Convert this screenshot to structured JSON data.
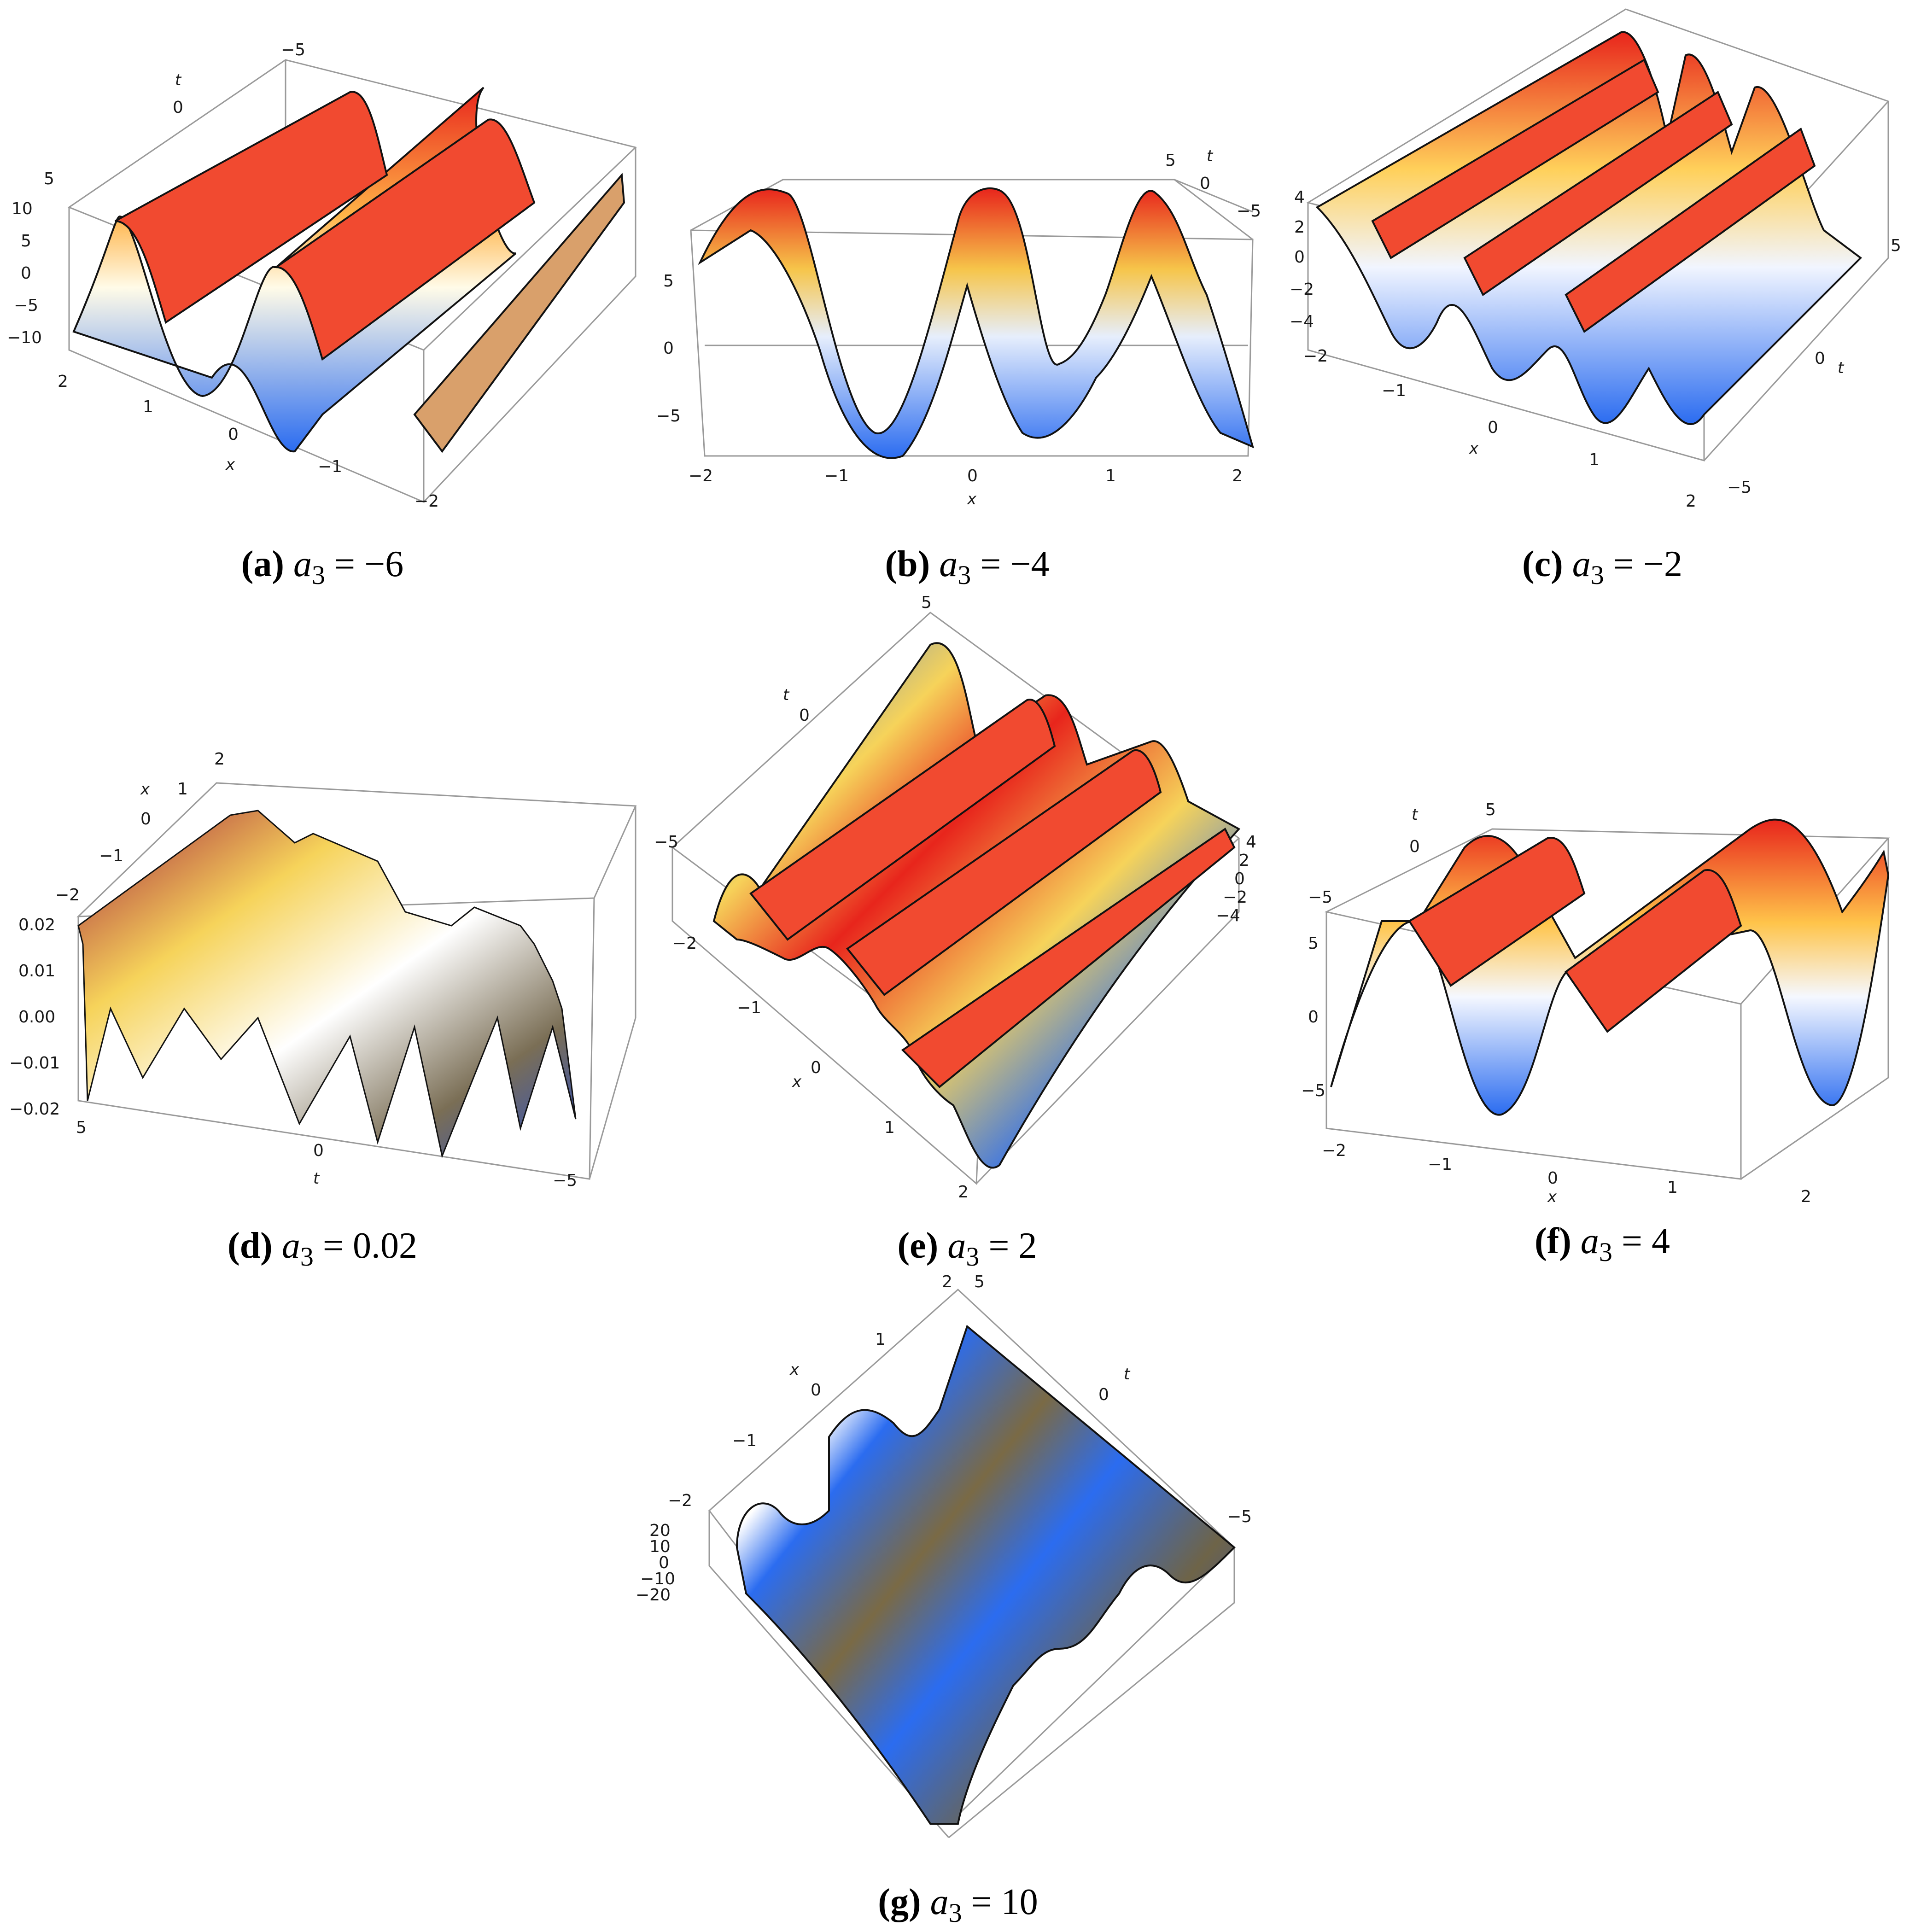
{
  "figure": {
    "panels": [
      {
        "id": "a",
        "label": "(a)",
        "param_name": "a",
        "param_sub": "3",
        "param_value": "−6",
        "caption_rest": " = −6",
        "ticks": {
          "t": [
            "−5",
            "0",
            "5"
          ],
          "z": [
            "10",
            "5",
            "0",
            "−5",
            "−10"
          ],
          "x": [
            "2",
            "1",
            "0",
            "−1",
            "−2"
          ]
        },
        "axis_names": [
          "t",
          "x"
        ]
      },
      {
        "id": "b",
        "label": "(b)",
        "param_name": "a",
        "param_sub": "3",
        "caption_rest": " = −4",
        "ticks": {
          "t": [
            "5",
            "0",
            "−5"
          ],
          "z": [
            "5",
            "0",
            "−5"
          ],
          "x": [
            "−2",
            "−1",
            "0",
            "1",
            "2"
          ]
        },
        "axis_names": [
          "t",
          "x"
        ]
      },
      {
        "id": "c",
        "label": "(c)",
        "param_name": "a",
        "param_sub": "3",
        "caption_rest": " = −2",
        "ticks": {
          "z": [
            "4",
            "2",
            "0",
            "−2",
            "−4"
          ],
          "x": [
            "−2",
            "−1",
            "0",
            "1",
            "2"
          ],
          "t": [
            "5",
            "0",
            "−5"
          ]
        },
        "axis_names": [
          "x",
          "t"
        ]
      },
      {
        "id": "d",
        "label": "(d)",
        "param_name": "a",
        "param_sub": "3",
        "caption_rest": " = 0.02",
        "ticks": {
          "x": [
            "2",
            "1",
            "0",
            "−1",
            "−2"
          ],
          "z": [
            "0.02",
            "0.01",
            "0.00",
            "−0.01",
            "−0.02"
          ],
          "t": [
            "5",
            "0",
            "−5"
          ]
        },
        "axis_names": [
          "x",
          "t"
        ]
      },
      {
        "id": "e",
        "label": "(e)",
        "param_name": "a",
        "param_sub": "3",
        "caption_rest": " = 2",
        "ticks": {
          "t": [
            "5",
            "0",
            "−5"
          ],
          "x": [
            "−2",
            "−1",
            "0",
            "1",
            "2"
          ],
          "z": [
            "4",
            "2",
            "0",
            "−2",
            "−4"
          ]
        },
        "axis_names": [
          "t",
          "x"
        ]
      },
      {
        "id": "f",
        "label": "(f)",
        "param_name": "a",
        "param_sub": "3",
        "caption_rest": " = 4",
        "ticks": {
          "t": [
            "5",
            "0",
            "−5"
          ],
          "z": [
            "5",
            "0",
            "−5"
          ],
          "x": [
            "−2",
            "−1",
            "0",
            "1",
            "2"
          ]
        },
        "axis_names": [
          "t",
          "x"
        ]
      },
      {
        "id": "g",
        "label": "(g)",
        "param_name": "a",
        "param_sub": "3",
        "caption_rest": " = 10",
        "ticks": {
          "x": [
            "2",
            "1",
            "0",
            "−1",
            "−2"
          ],
          "t": [
            "5",
            "0",
            "−5"
          ],
          "z": [
            "20",
            "10",
            "0",
            "−10",
            "−20"
          ]
        },
        "axis_names": [
          "x",
          "t"
        ]
      }
    ],
    "colors": {
      "peak": "#e8251c",
      "mid": "#fff3c4",
      "trough": "#2b6cf0",
      "box": "#9a9a9a",
      "ridge": "#111111"
    }
  }
}
